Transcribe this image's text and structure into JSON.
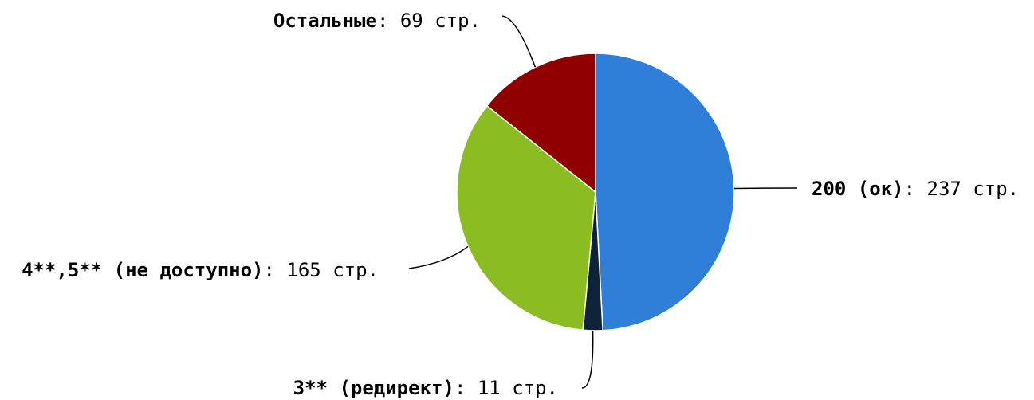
{
  "chart_data": {
    "type": "pie",
    "categories": [
      "200 (ок)",
      "3** (редирект)",
      "4**,5** (не доступно)",
      "Остальные"
    ],
    "values": [
      237,
      11,
      165,
      69
    ],
    "value_labels": [
      "237 стр.",
      "11 стр.",
      "165 стр.",
      "69 стр."
    ],
    "separator": ": ",
    "colors": [
      "#2f7ed8",
      "#0d233a",
      "#8bbc21",
      "#910000"
    ]
  }
}
